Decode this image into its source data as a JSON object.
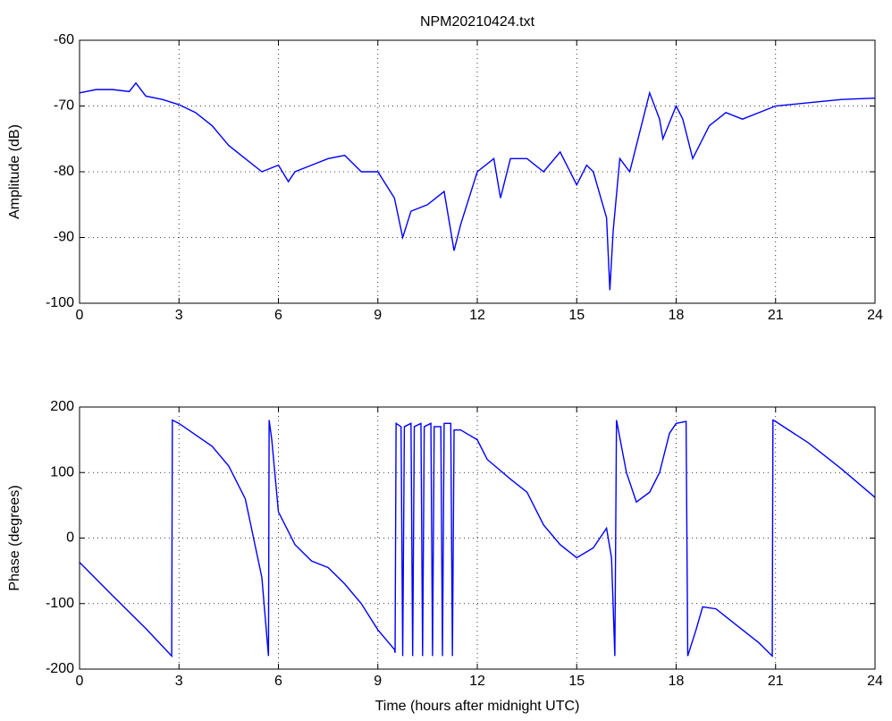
{
  "chart_data": [
    {
      "type": "line",
      "title": "NPM20210424.txt",
      "ylabel": "Amplitude (dB)",
      "xlim": [
        0,
        24
      ],
      "xticks": [
        0,
        3,
        6,
        9,
        12,
        15,
        18,
        21,
        24
      ],
      "ylim": [
        -100,
        -60
      ],
      "yticks": [
        -100,
        -90,
        -80,
        -70,
        -60
      ],
      "grid": true,
      "x": [
        0,
        0.5,
        1,
        1.5,
        1.7,
        2,
        2.5,
        3,
        3.5,
        4,
        4.5,
        5,
        5.5,
        6,
        6.3,
        6.5,
        7,
        7.5,
        8,
        8.5,
        9,
        9.5,
        9.75,
        10,
        10.5,
        11,
        11.3,
        11.5,
        12,
        12.5,
        12.7,
        13,
        13.5,
        14,
        14.5,
        15,
        15.3,
        15.5,
        15.9,
        16,
        16.1,
        16.3,
        16.6,
        17,
        17.2,
        17.5,
        17.6,
        18,
        18.2,
        18.5,
        19,
        19.5,
        20,
        21,
        22,
        23,
        24
      ],
      "series": [
        {
          "color": "#0000ff",
          "values": [
            -68,
            -67.5,
            -67.5,
            -67.8,
            -66.5,
            -68.5,
            -69,
            -69.8,
            -71,
            -73,
            -76,
            -78,
            -80,
            -79,
            -81.5,
            -80,
            -79,
            -78,
            -77.5,
            -80,
            -80,
            -84,
            -90,
            -86,
            -85,
            -83,
            -92,
            -88,
            -80,
            -78,
            -84,
            -78,
            -78,
            -80,
            -77,
            -82,
            -79,
            -80,
            -87,
            -98,
            -89,
            -78,
            -80,
            -72,
            -68,
            -72,
            -75,
            -70,
            -72,
            -78,
            -73,
            -71,
            -72,
            -70,
            -69.5,
            -69,
            -68.8
          ]
        }
      ]
    },
    {
      "type": "line",
      "xlabel": "Time (hours after midnight UTC)",
      "ylabel": "Phase (degrees)",
      "xlim": [
        0,
        24
      ],
      "xticks": [
        0,
        3,
        6,
        9,
        12,
        15,
        18,
        21,
        24
      ],
      "ylim": [
        -200,
        200
      ],
      "yticks": [
        -200,
        -100,
        0,
        100,
        200
      ],
      "grid": true,
      "x": [
        0,
        1,
        2,
        2.78,
        2.8,
        3,
        4,
        4.5,
        5,
        5.5,
        5.7,
        5.72,
        5.8,
        6,
        6.5,
        7,
        7.5,
        8,
        8.5,
        9,
        9.5,
        9.52,
        9.55,
        9.7,
        9.75,
        9.8,
        10,
        10.05,
        10.1,
        10.3,
        10.35,
        10.4,
        10.6,
        10.65,
        10.7,
        10.9,
        10.95,
        11,
        11.2,
        11.25,
        11.3,
        11.5,
        12,
        12.3,
        13,
        13.5,
        14,
        14.5,
        15,
        15.5,
        15.9,
        16.05,
        16.15,
        16.2,
        16.5,
        16.8,
        17.2,
        17.5,
        17.8,
        18,
        18.3,
        18.35,
        18.6,
        18.8,
        19.2,
        19.5,
        20,
        20.5,
        20.9,
        20.92,
        21,
        22,
        23,
        24
      ],
      "series": [
        {
          "color": "#0000ff",
          "values": [
            -37,
            -88,
            -138,
            -180,
            180,
            175,
            140,
            110,
            60,
            -60,
            -180,
            180,
            150,
            40,
            -10,
            -35,
            -45,
            -70,
            -100,
            -140,
            -170,
            -175,
            175,
            170,
            -180,
            170,
            175,
            -180,
            170,
            175,
            -180,
            170,
            175,
            -180,
            170,
            170,
            -180,
            175,
            175,
            -180,
            165,
            165,
            150,
            120,
            90,
            70,
            20,
            -10,
            -30,
            -15,
            15,
            -30,
            -180,
            180,
            100,
            55,
            70,
            100,
            160,
            175,
            178,
            -180,
            -140,
            -105,
            -108,
            -120,
            -140,
            -160,
            -180,
            180,
            178,
            145,
            105,
            62
          ]
        }
      ]
    }
  ]
}
